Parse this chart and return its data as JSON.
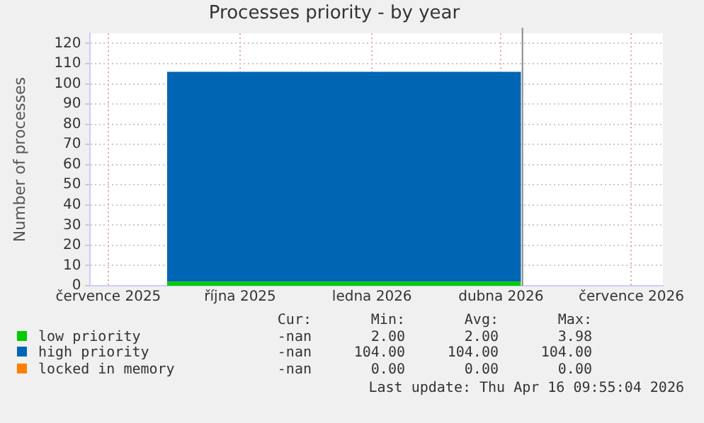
{
  "chart_data": {
    "type": "area",
    "title": "Processes priority - by year",
    "ylabel": "Number of processes",
    "stacked": true,
    "legend": "bottom",
    "grid": true,
    "marker": "none",
    "xlim": [
      "2025-06-18",
      "2026-07-23"
    ],
    "xticks": [
      {
        "value": "2025-07-01",
        "label": "července 2025"
      },
      {
        "value": "2025-10-01",
        "label": "října 2025"
      },
      {
        "value": "2026-01-01",
        "label": "ledna 2026"
      },
      {
        "value": "2026-04-01",
        "label": "dubna 2026"
      },
      {
        "value": "2026-07-01",
        "label": "července 2026"
      }
    ],
    "ylim": [
      0,
      125
    ],
    "yticks": [
      0,
      10,
      20,
      30,
      40,
      50,
      60,
      70,
      80,
      90,
      100,
      110,
      120
    ],
    "x": [
      "2025-08-11",
      "2026-04-15"
    ],
    "series": [
      {
        "name": "low priority",
        "color": "#00cc00",
        "values": [
          2,
          2
        ]
      },
      {
        "name": "high priority",
        "color": "#0066b3",
        "values": [
          104,
          104
        ]
      },
      {
        "name": "locked in memory",
        "color": "#ff8000",
        "values": [
          null,
          null
        ]
      }
    ],
    "ref_lines": [
      {
        "axis": "x",
        "value": "2026-04-16",
        "color": "#888888"
      }
    ],
    "annotations": [
      "Cur:",
      "Min:",
      "Avg:",
      "Max:",
      "-nan",
      "2.00",
      "2.00",
      "3.98",
      "-nan",
      "104.00",
      "104.00",
      "104.00",
      "-nan",
      "0.00",
      "0.00",
      "0.00",
      "Last update: Thu Apr 16 09:55:04 2026"
    ]
  }
}
